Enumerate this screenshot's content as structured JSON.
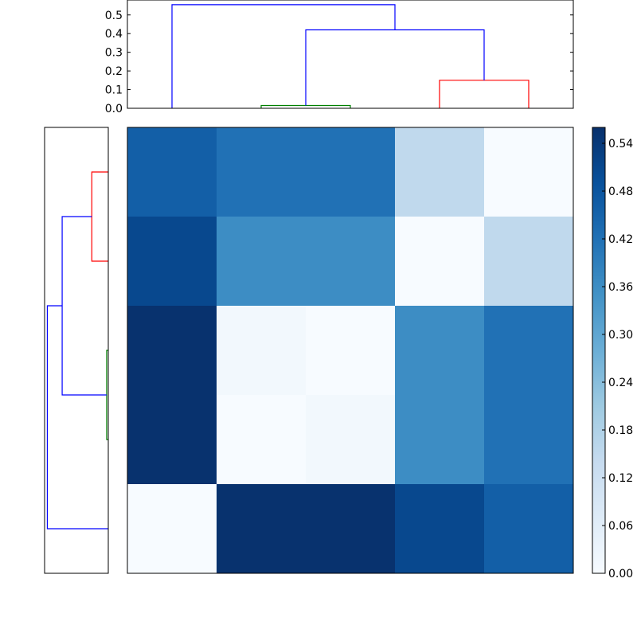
{
  "chart_data": [
    {
      "type": "dendrogram",
      "orientation": "top",
      "ylim": [
        0,
        0.58
      ],
      "yticks": [
        "0.0",
        "0.1",
        "0.2",
        "0.3",
        "0.4",
        "0.5"
      ],
      "leaves": 5,
      "links": [
        {
          "left_x": 2,
          "right_x": 3,
          "left_h": 0,
          "right_h": 0,
          "height": 0.015,
          "color": "#008000"
        },
        {
          "left_x": 4,
          "right_x": 5,
          "left_h": 0,
          "right_h": 0,
          "height": 0.15,
          "color": "#ff0000"
        },
        {
          "left_x": 2.5,
          "right_x": 4.5,
          "left_h": 0.015,
          "right_h": 0.15,
          "height": 0.42,
          "color": "#0000ff"
        },
        {
          "left_x": 1,
          "right_x": 3.5,
          "left_h": 0,
          "right_h": 0.42,
          "height": 0.555,
          "color": "#0000ff"
        }
      ]
    },
    {
      "type": "dendrogram",
      "orientation": "left",
      "leaves": 5,
      "links": [
        {
          "left_x": 1,
          "right_x": 2,
          "left_h": 0,
          "right_h": 0,
          "height": 0.15,
          "color": "#ff0000"
        },
        {
          "left_x": 3,
          "right_x": 4,
          "left_h": 0,
          "right_h": 0,
          "height": 0.015,
          "color": "#008000"
        },
        {
          "left_x": 1.5,
          "right_x": 3.5,
          "left_h": 0.15,
          "right_h": 0.015,
          "height": 0.42,
          "color": "#0000ff"
        },
        {
          "left_x": 2.5,
          "right_x": 5,
          "left_h": 0.42,
          "right_h": 0,
          "height": 0.555,
          "color": "#0000ff"
        }
      ]
    },
    {
      "type": "heatmap",
      "colormap": "Blues",
      "vmin": 0,
      "vmax": 0.56,
      "values": [
        [
          0.46,
          0.42,
          0.42,
          0.15,
          0.0
        ],
        [
          0.51,
          0.36,
          0.36,
          0.0,
          0.15
        ],
        [
          0.555,
          0.015,
          0.0,
          0.36,
          0.42
        ],
        [
          0.555,
          0.0,
          0.015,
          0.36,
          0.42
        ],
        [
          0.0,
          0.555,
          0.555,
          0.51,
          0.46
        ]
      ],
      "colorbar_ticks": [
        "0.00",
        "0.06",
        "0.12",
        "0.18",
        "0.24",
        "0.30",
        "0.36",
        "0.42",
        "0.48",
        "0.54"
      ]
    }
  ]
}
